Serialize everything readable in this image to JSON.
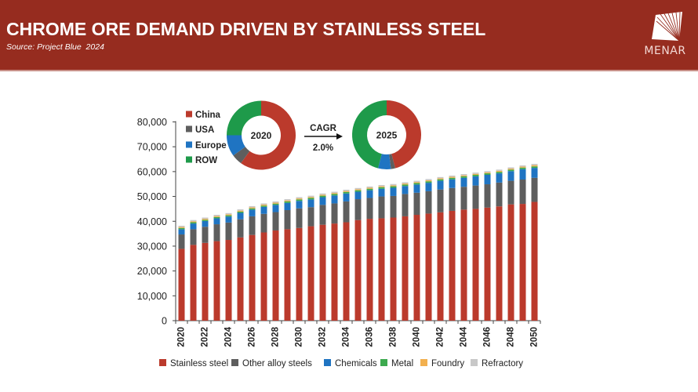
{
  "header": {
    "title": "CHROME ORE DEMAND DRIVEN BY STAINLESS STEEL",
    "source": "Source: Project Blue  2024",
    "logo_text": "MENAR",
    "background_color": "#962c1f"
  },
  "donuts": {
    "legend": [
      {
        "label": "China",
        "color": "#bb3a2c"
      },
      {
        "label": "USA",
        "color": "#5e5e5e"
      },
      {
        "label": "Europe",
        "color": "#1f74c2"
      },
      {
        "label": "ROW",
        "color": "#1e9a4a"
      }
    ],
    "charts": [
      {
        "label": "2020",
        "shares": {
          "China": 60,
          "USA": 5,
          "Europe": 10,
          "ROW": 25
        }
      },
      {
        "label": "2025",
        "shares": {
          "China": 46,
          "USA": 2,
          "Europe": 6,
          "ROW": 46
        }
      }
    ],
    "cagr_label": "CAGR",
    "cagr_value": "2.0%"
  },
  "chart_data": {
    "type": "bar",
    "stacked": true,
    "title": "",
    "xlabel": "",
    "ylabel": "",
    "ylim": [
      0,
      80000
    ],
    "yticks": [
      "0",
      "10,000",
      "20,000",
      "30,000",
      "40,000",
      "50,000",
      "60,000",
      "70,000",
      "80,000"
    ],
    "ytick_values": [
      0,
      10000,
      20000,
      30000,
      40000,
      50000,
      60000,
      70000,
      80000
    ],
    "grid": false,
    "legend_position": "bottom",
    "categories": [
      "2020",
      "2021",
      "2022",
      "2023",
      "2024",
      "2025",
      "2026",
      "2027",
      "2028",
      "2029",
      "2030",
      "2031",
      "2032",
      "2033",
      "2034",
      "2035",
      "2036",
      "2037",
      "2038",
      "2039",
      "2040",
      "2041",
      "2042",
      "2043",
      "2044",
      "2045",
      "2046",
      "2047",
      "2048",
      "2049",
      "2050"
    ],
    "xtick_labels_shown": [
      "2020",
      "2022",
      "2024",
      "2026",
      "2028",
      "2030",
      "2032",
      "2034",
      "2036",
      "2038",
      "2040",
      "2042",
      "2044",
      "2046",
      "2048",
      "2050"
    ],
    "series": [
      {
        "name": "Stainless steel",
        "color": "#bb3a2c",
        "values": [
          28900,
          30500,
          31300,
          32000,
          32500,
          33500,
          34500,
          35500,
          36300,
          36800,
          37300,
          38000,
          38600,
          39100,
          39600,
          40500,
          41000,
          41200,
          41500,
          42000,
          42600,
          43100,
          43600,
          44200,
          44700,
          45000,
          45500,
          46000,
          46800,
          47000,
          47800
        ]
      },
      {
        "name": "Other alloy steels",
        "color": "#5e5e5e",
        "values": [
          5800,
          6300,
          6500,
          6800,
          7000,
          7300,
          7500,
          7500,
          7400,
          7700,
          7900,
          7700,
          8000,
          8100,
          8400,
          8400,
          8400,
          8800,
          8700,
          9000,
          8900,
          9000,
          9200,
          9200,
          9200,
          9400,
          9400,
          9600,
          9500,
          9800,
          9700
        ]
      },
      {
        "name": "Chemicals",
        "color": "#1f74c2",
        "values": [
          2100,
          2300,
          2300,
          2400,
          2400,
          2600,
          2700,
          2800,
          2900,
          2900,
          3000,
          3100,
          3100,
          3200,
          3200,
          3000,
          3100,
          3100,
          3300,
          3200,
          3300,
          3400,
          3500,
          3500,
          3600,
          3700,
          3800,
          3700,
          3900,
          4200,
          4000
        ]
      },
      {
        "name": "Metal",
        "color": "#3daa4f",
        "values": [
          500,
          500,
          500,
          500,
          500,
          500,
          500,
          500,
          500,
          600,
          600,
          600,
          600,
          600,
          600,
          600,
          600,
          600,
          600,
          600,
          600,
          600,
          600,
          600,
          600,
          600,
          600,
          600,
          600,
          600,
          600
        ]
      },
      {
        "name": "Foundry",
        "color": "#f2b04f",
        "values": [
          400,
          400,
          400,
          400,
          400,
          400,
          400,
          400,
          400,
          400,
          400,
          400,
          400,
          400,
          400,
          400,
          400,
          400,
          400,
          400,
          400,
          400,
          400,
          400,
          400,
          400,
          400,
          400,
          400,
          400,
          500
        ]
      },
      {
        "name": "Refractory",
        "color": "#c8c8c8",
        "values": [
          500,
          500,
          500,
          500,
          500,
          500,
          500,
          500,
          500,
          500,
          500,
          500,
          500,
          500,
          500,
          500,
          500,
          500,
          500,
          500,
          500,
          500,
          500,
          500,
          500,
          500,
          500,
          500,
          500,
          500,
          500
        ]
      }
    ]
  }
}
